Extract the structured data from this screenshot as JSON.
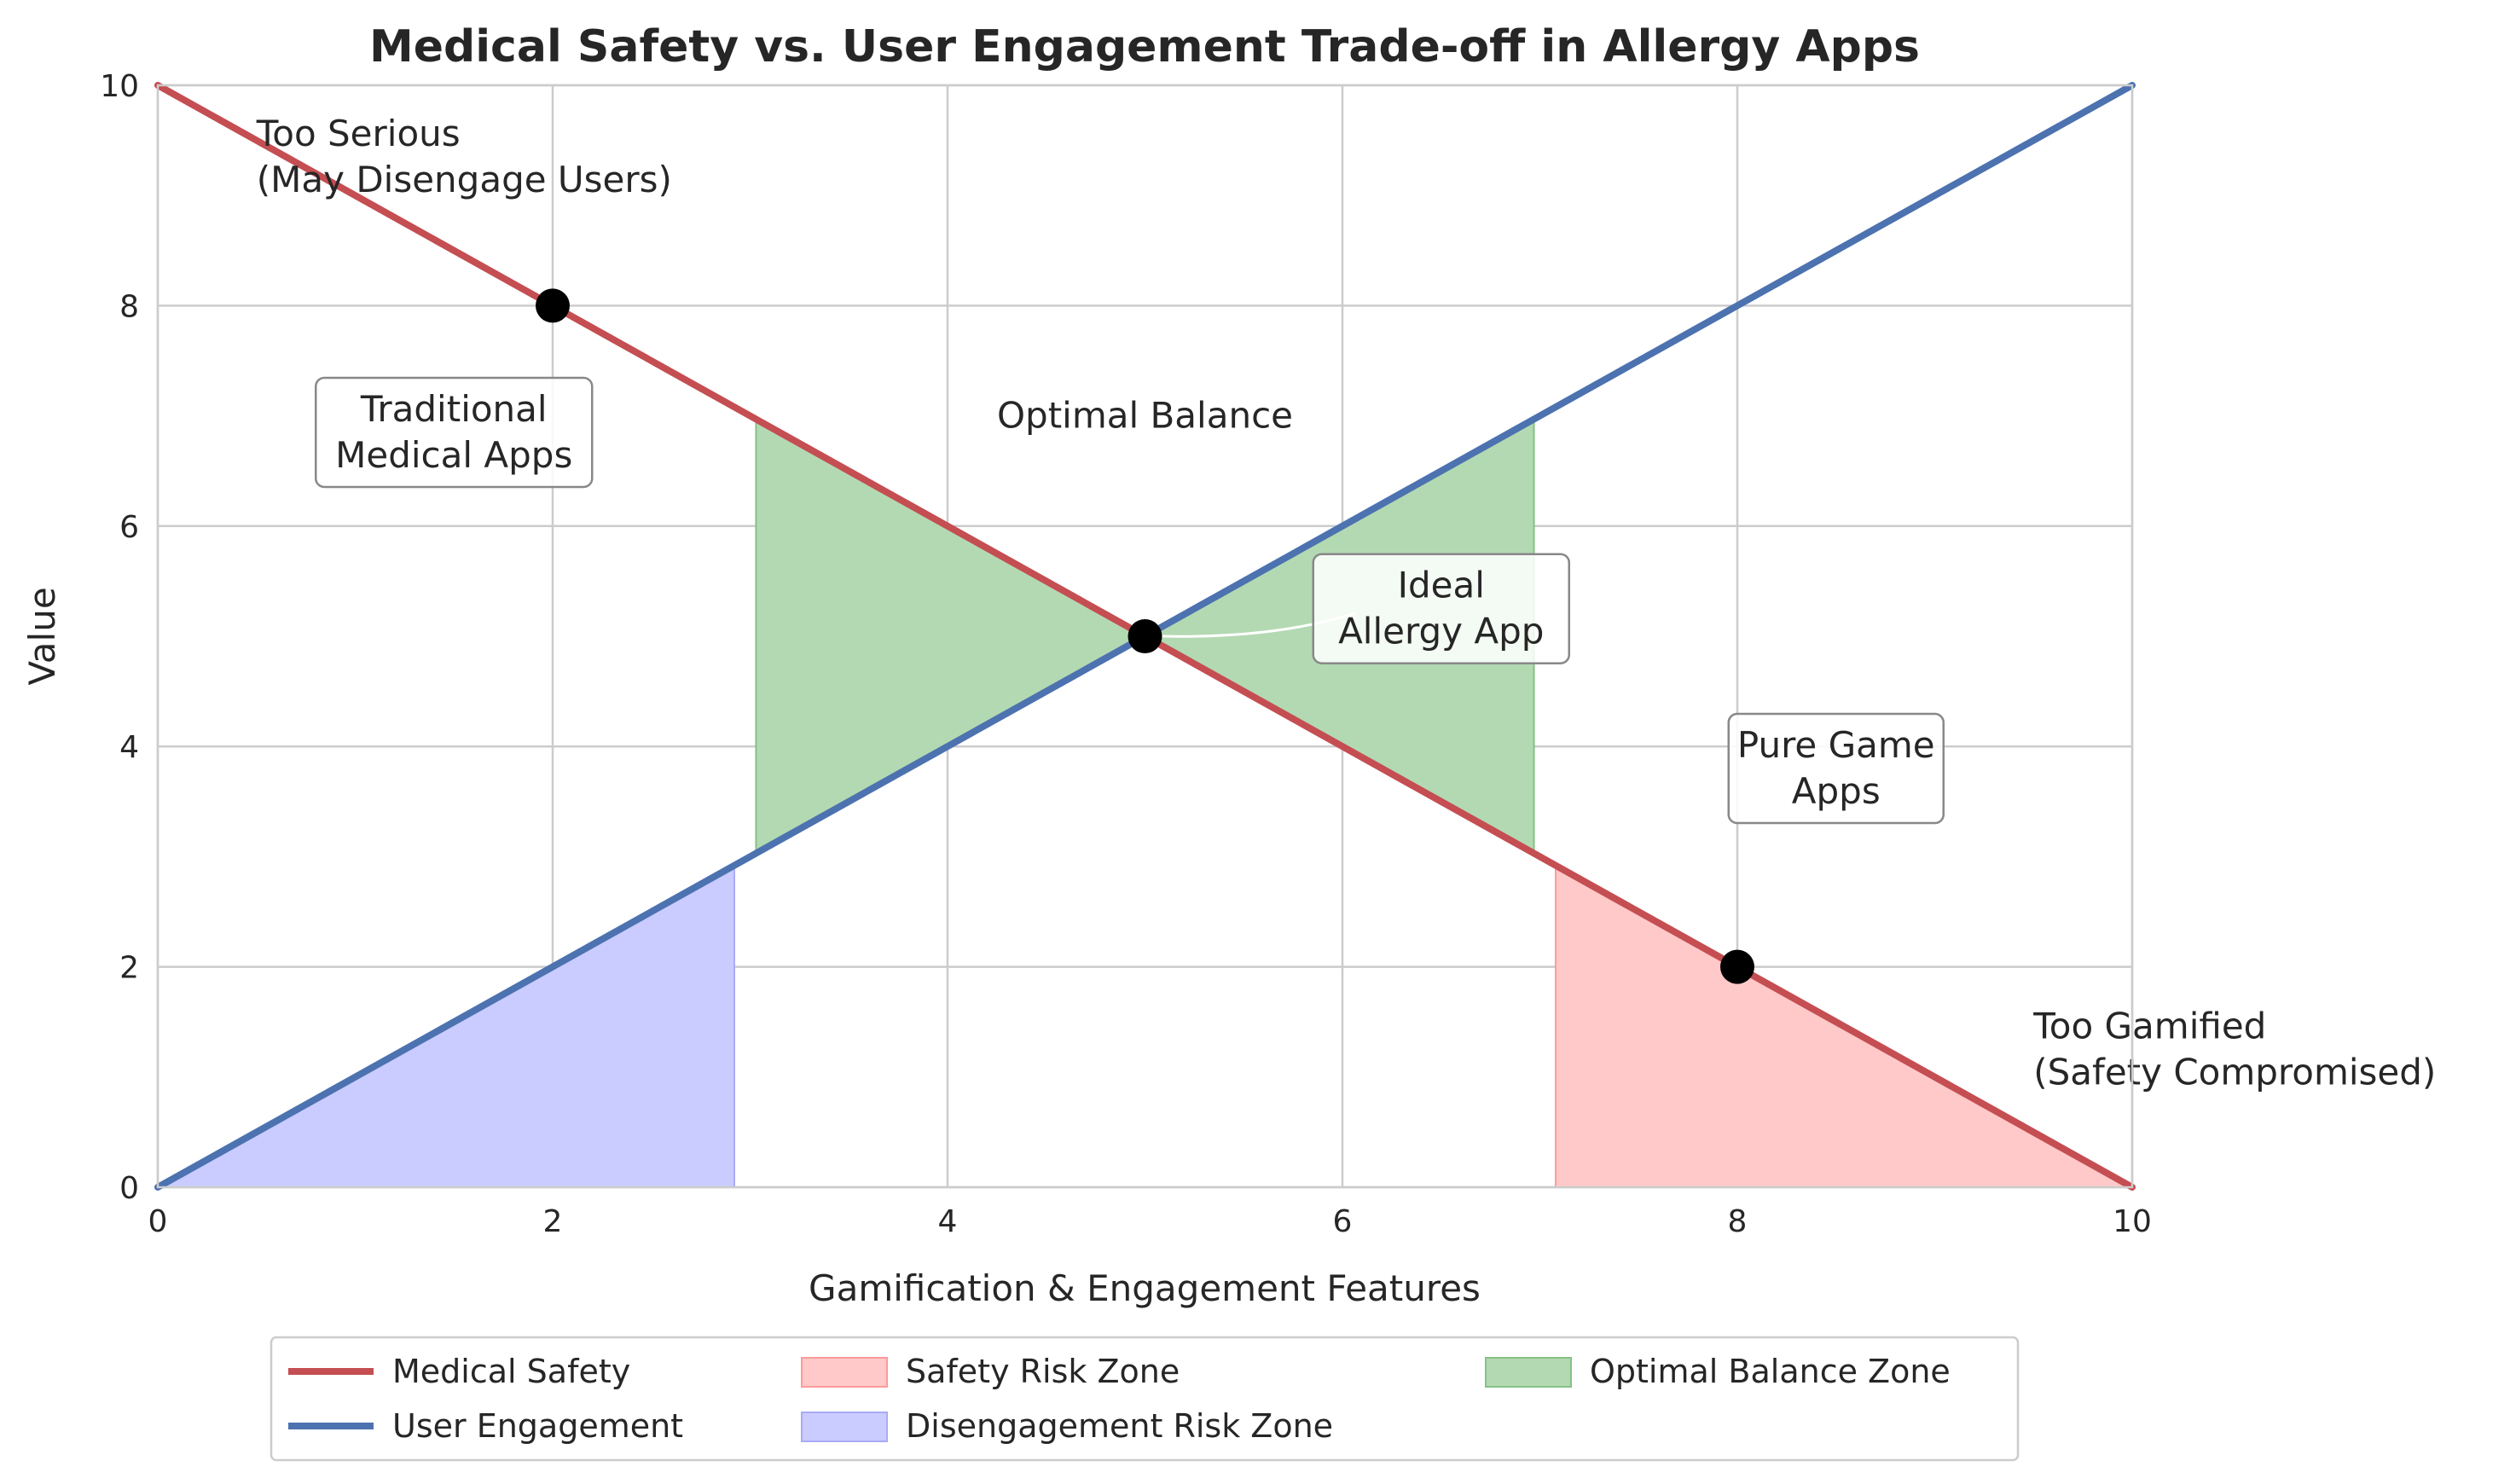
{
  "chart_data": {
    "type": "line",
    "title": "Medical Safety vs. User Engagement Trade-off in Allergy Apps",
    "xlabel": "Gamification & Engagement Features",
    "ylabel": "Value",
    "xlim": [
      0,
      10
    ],
    "ylim": [
      0,
      10
    ],
    "xticks": [
      0,
      2,
      4,
      6,
      8,
      10
    ],
    "yticks": [
      0,
      2,
      4,
      6,
      8,
      10
    ],
    "grid": true,
    "legend_position": "bottom-center",
    "series": [
      {
        "name": "Medical Safety",
        "color": "#c44e52",
        "x": [
          0,
          10
        ],
        "y": [
          10,
          0
        ]
      },
      {
        "name": "User Engagement",
        "color": "#4c72b0",
        "x": [
          0,
          10
        ],
        "y": [
          0,
          10
        ]
      }
    ],
    "zones": [
      {
        "name": "Safety Risk Zone",
        "color": "#ffc9c9",
        "edge": "#ff9a9a",
        "x_start": 7.08,
        "x_end": 10,
        "bound": "Medical Safety"
      },
      {
        "name": "Disengagement Risk Zone",
        "color": "#cacbff",
        "edge": "#a9abf5",
        "x_start": 0,
        "x_end": 2.92,
        "bound": "User Engagement"
      },
      {
        "name": "Optimal Balance Zone",
        "color": "#b3d9b3",
        "edge": "#85c285",
        "x_start": 3.03,
        "x_end": 6.97,
        "bound": "between"
      }
    ],
    "points": [
      {
        "x": 2,
        "y": 8
      },
      {
        "x": 5,
        "y": 5
      },
      {
        "x": 8,
        "y": 2
      }
    ],
    "annotations": [
      {
        "text": [
          "Too Serious",
          "(May Disengage Users)"
        ],
        "x": 0.5,
        "y": 9.35,
        "anchor": "start",
        "boxed": false
      },
      {
        "text": [
          "Traditional",
          "Medical Apps"
        ],
        "x": 1.5,
        "y": 6.85,
        "anchor": "middle",
        "boxed": true
      },
      {
        "text": [
          "Optimal Balance"
        ],
        "x": 5,
        "y": 7.0,
        "anchor": "middle",
        "boxed": false
      },
      {
        "text": [
          "Ideal",
          "Allergy App"
        ],
        "x": 6.5,
        "y": 5.25,
        "anchor": "middle",
        "boxed": true
      },
      {
        "text": [
          "Pure Game",
          "Apps"
        ],
        "x": 8.5,
        "y": 3.8,
        "anchor": "middle",
        "boxed": true
      },
      {
        "text": [
          "Too Gamified",
          "(Safety Compromised)"
        ],
        "x": 9.5,
        "y": 1.25,
        "anchor": "start",
        "boxed": false
      }
    ]
  }
}
